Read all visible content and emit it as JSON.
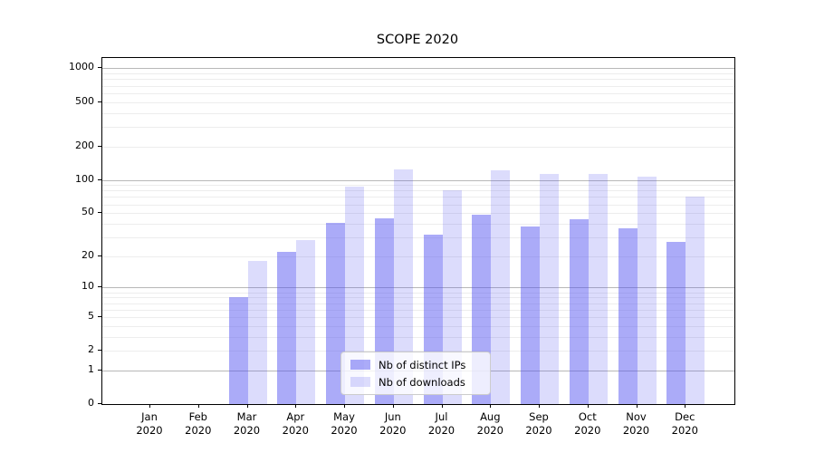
{
  "chart_data": {
    "type": "bar",
    "title": "SCOPE 2020",
    "categories": [
      "Jan 2020",
      "Feb 2020",
      "Mar 2020",
      "Apr 2020",
      "May 2020",
      "Jun 2020",
      "Jul 2020",
      "Aug 2020",
      "Sep 2020",
      "Oct 2020",
      "Nov 2020",
      "Dec 2020"
    ],
    "series": [
      {
        "name": "Nb of distinct IPs",
        "color": "rgba(80,80,240,0.48)",
        "values": [
          0,
          0,
          8,
          22,
          41,
          45,
          32,
          48,
          38,
          44,
          36,
          27
        ]
      },
      {
        "name": "Nb of downloads",
        "color": "rgba(80,80,240,0.20)",
        "values": [
          0,
          0,
          18,
          28,
          87,
          125,
          81,
          121,
          112,
          114,
          107,
          71
        ]
      }
    ],
    "yscale": "log1p",
    "ylim": [
      0,
      1200
    ],
    "y_tick_labels": [
      0,
      1,
      2,
      5,
      10,
      20,
      50,
      100,
      200,
      500,
      1000
    ],
    "y_major_gridlines": [
      1,
      10,
      100,
      1000
    ],
    "y_minor_gridlines": [
      2,
      3,
      4,
      5,
      6,
      7,
      8,
      9,
      20,
      30,
      40,
      50,
      60,
      70,
      80,
      90,
      200,
      300,
      400,
      500,
      600,
      700,
      800,
      900
    ],
    "grid": true,
    "legend_position": "lower center"
  },
  "colors": {
    "bar_distinct_ips": "rgba(80,80,240,0.48)",
    "bar_downloads": "rgba(80,80,240,0.20)",
    "grid_major": "#b8b8b8",
    "grid_minor": "#ededed",
    "axis": "#000000",
    "text": "#000000",
    "legend_bg": "rgba(255,255,255,0.8)",
    "legend_border": "#cccccc"
  }
}
